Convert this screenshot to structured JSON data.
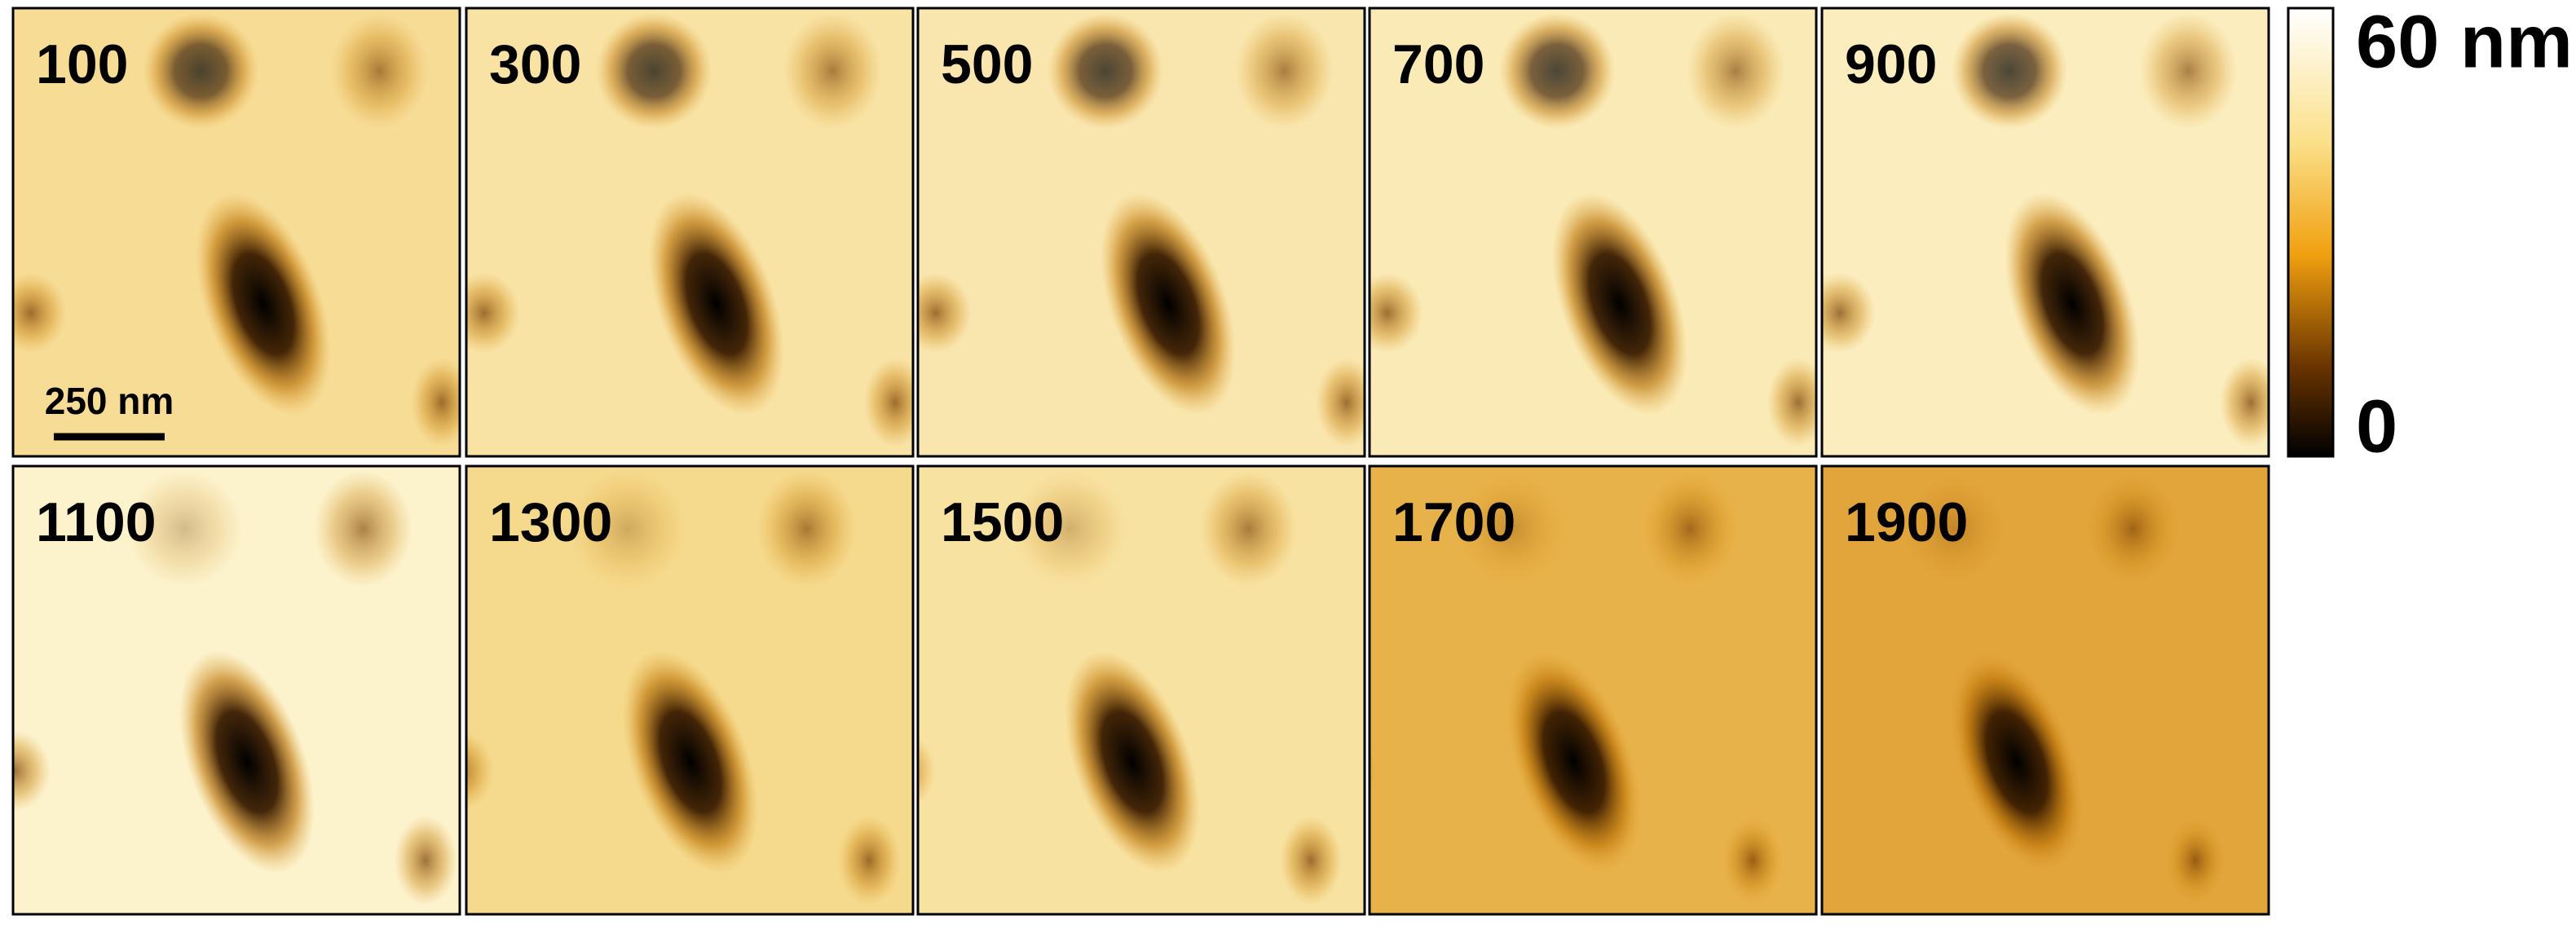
{
  "panels": [
    {
      "label": "100"
    },
    {
      "label": "300"
    },
    {
      "label": "500"
    },
    {
      "label": "700"
    },
    {
      "label": "900"
    },
    {
      "label": "1100"
    },
    {
      "label": "1300"
    },
    {
      "label": "1500"
    },
    {
      "label": "1700"
    },
    {
      "label": "1900"
    }
  ],
  "scale_bar": {
    "label": "250 nm"
  },
  "colorbar": {
    "max_label": "60 nm",
    "min_label": "0"
  }
}
